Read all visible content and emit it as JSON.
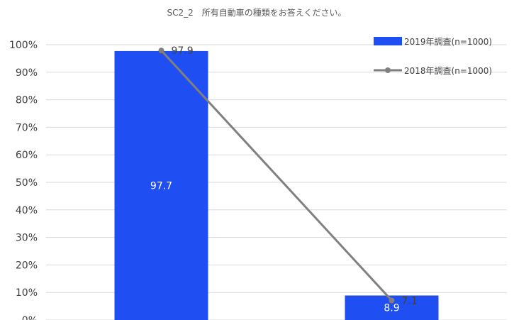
{
  "chart_data": {
    "type": "bar",
    "title": "SC2_2　所有自動車の種類をお答えください。",
    "xlabel": "",
    "ylabel": "",
    "ylim": [
      0,
      100
    ],
    "y_ticks": [
      "0%",
      "10%",
      "20%",
      "30%",
      "40%",
      "50%",
      "60%",
      "70%",
      "80%",
      "90%",
      "100%"
    ],
    "grid": true,
    "legend_position": "top-right",
    "series": [
      {
        "name": "2019年調査(n=1000)",
        "kind": "bar",
        "color": "#1f4ef2",
        "values": [
          97.7,
          8.9
        ]
      },
      {
        "name": "2018年調査(n=1000)",
        "kind": "line",
        "color": "#808080",
        "values": [
          97.9,
          7.1
        ]
      }
    ]
  }
}
